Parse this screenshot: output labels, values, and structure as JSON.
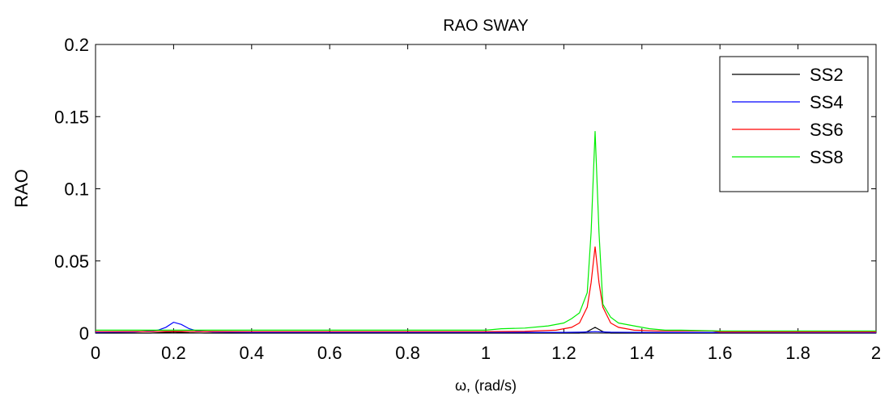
{
  "chart_data": {
    "type": "line",
    "title": "RAO SWAY",
    "xlabel": "ω, (rad/s)",
    "ylabel": "RAO",
    "xlim": [
      0,
      2
    ],
    "ylim": [
      0,
      0.2
    ],
    "xticks": [
      "0",
      "0.2",
      "0.4",
      "0.6",
      "0.8",
      "1",
      "1.2",
      "1.4",
      "1.6",
      "1.8",
      "2"
    ],
    "yticks": [
      "0",
      "0.05",
      "0.1",
      "0.15",
      "0.2"
    ],
    "grid": false,
    "legend_position": "top-right",
    "series": [
      {
        "name": "SS2",
        "color": "#000000",
        "x": [
          0,
          0.14,
          0.16,
          0.18,
          0.2,
          0.22,
          0.24,
          0.26,
          0.28,
          1.24,
          1.26,
          1.28,
          1.3,
          1.32,
          2
        ],
        "y": [
          0,
          0,
          0.0002,
          0.0005,
          0.0008,
          0.0005,
          0.0002,
          0.0001,
          0,
          0,
          0.001,
          0.004,
          0.001,
          0,
          0
        ]
      },
      {
        "name": "SS4",
        "color": "#0000ff",
        "x": [
          0,
          0.1,
          0.14,
          0.16,
          0.18,
          0.2,
          0.22,
          0.24,
          0.26,
          0.3,
          0.4,
          1.2,
          1.24,
          1.26,
          1.28,
          1.3,
          1.32,
          1.4,
          2
        ],
        "y": [
          0.0005,
          0.0008,
          0.0015,
          0.002,
          0.004,
          0.0075,
          0.006,
          0.003,
          0.0015,
          0.0008,
          0.0005,
          0.0005,
          0.0006,
          0.0008,
          0.001,
          0.0008,
          0.0006,
          0.0005,
          0.0003
        ]
      },
      {
        "name": "SS6",
        "color": "#ff0000",
        "x": [
          0,
          0.2,
          0.4,
          1.0,
          1.1,
          1.18,
          1.22,
          1.24,
          1.26,
          1.27,
          1.28,
          1.29,
          1.3,
          1.32,
          1.34,
          1.38,
          1.44,
          1.5,
          1.56,
          1.58,
          1.6,
          2
        ],
        "y": [
          0.001,
          0.0012,
          0.001,
          0.001,
          0.0012,
          0.002,
          0.004,
          0.007,
          0.018,
          0.035,
          0.06,
          0.035,
          0.018,
          0.007,
          0.004,
          0.002,
          0.0015,
          0.0015,
          0.0015,
          0.0015,
          0.0008,
          0.0008
        ]
      },
      {
        "name": "SS8",
        "color": "#00ee00",
        "x": [
          0,
          0.2,
          0.4,
          0.6,
          0.8,
          1.0,
          1.04,
          1.1,
          1.16,
          1.2,
          1.22,
          1.24,
          1.26,
          1.27,
          1.28,
          1.29,
          1.3,
          1.32,
          1.34,
          1.38,
          1.42,
          1.46,
          1.5,
          1.6,
          2
        ],
        "y": [
          0.002,
          0.002,
          0.002,
          0.002,
          0.002,
          0.002,
          0.003,
          0.0035,
          0.005,
          0.007,
          0.01,
          0.014,
          0.028,
          0.07,
          0.14,
          0.07,
          0.02,
          0.011,
          0.007,
          0.005,
          0.003,
          0.002,
          0.002,
          0.0015,
          0.0015
        ]
      }
    ]
  }
}
